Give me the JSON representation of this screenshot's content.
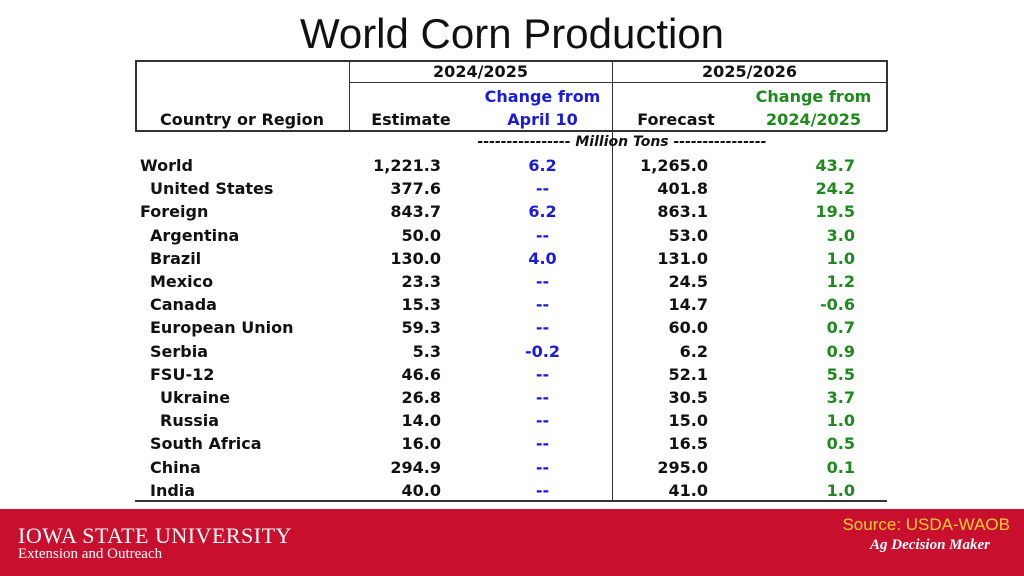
{
  "title": "World Corn Production",
  "table": {
    "header": {
      "col_country": "Country or Region",
      "group1": "2024/2025",
      "group2": "2025/2026",
      "estimate": "Estimate",
      "change1_line1": "Change from",
      "change1_line2": "April 10",
      "forecast": "Forecast",
      "change2_line1": "Change from",
      "change2_line2": "2024/2025"
    },
    "units": "---------------- Million Tons ----------------",
    "rows": [
      {
        "name": "World",
        "estimate": "1,221.3",
        "change1": "6.2",
        "forecast": "1,265.0",
        "change2": "43.7"
      },
      {
        "name": "United States",
        "estimate": "377.6",
        "change1": "--",
        "forecast": "401.8",
        "change2": "24.2"
      },
      {
        "name": "Foreign",
        "estimate": "843.7",
        "change1": "6.2",
        "forecast": "863.1",
        "change2": "19.5"
      },
      {
        "name": "Argentina",
        "estimate": "50.0",
        "change1": "--",
        "forecast": "53.0",
        "change2": "3.0"
      },
      {
        "name": "Brazil",
        "estimate": "130.0",
        "change1": "4.0",
        "forecast": "131.0",
        "change2": "1.0"
      },
      {
        "name": "Mexico",
        "estimate": "23.3",
        "change1": "--",
        "forecast": "24.5",
        "change2": "1.2"
      },
      {
        "name": "Canada",
        "estimate": "15.3",
        "change1": "--",
        "forecast": "14.7",
        "change2": "-0.6"
      },
      {
        "name": "European Union",
        "estimate": "59.3",
        "change1": "--",
        "forecast": "60.0",
        "change2": "0.7"
      },
      {
        "name": "Serbia",
        "estimate": "5.3",
        "change1": "-0.2",
        "forecast": "6.2",
        "change2": "0.9"
      },
      {
        "name": "FSU-12",
        "estimate": "46.6",
        "change1": "--",
        "forecast": "52.1",
        "change2": "5.5"
      },
      {
        "name": "Ukraine",
        "estimate": "26.8",
        "change1": "--",
        "forecast": "30.5",
        "change2": "3.7"
      },
      {
        "name": "Russia",
        "estimate": "14.0",
        "change1": "--",
        "forecast": "15.0",
        "change2": "1.0"
      },
      {
        "name": "South Africa",
        "estimate": "16.0",
        "change1": "--",
        "forecast": "16.5",
        "change2": "0.5"
      },
      {
        "name": "China",
        "estimate": "294.9",
        "change1": "--",
        "forecast": "295.0",
        "change2": "0.1"
      },
      {
        "name": "India",
        "estimate": "40.0",
        "change1": "--",
        "forecast": "41.0",
        "change2": "1.0"
      }
    ],
    "colors": {
      "change1": "#1a1adb",
      "change2": "#1e8a1e"
    }
  },
  "footer": {
    "university": "IOWA STATE UNIVERSITY",
    "subtitle": "Extension and Outreach",
    "source": "Source: USDA-WAOB",
    "brand": "Ag Decision Maker"
  }
}
